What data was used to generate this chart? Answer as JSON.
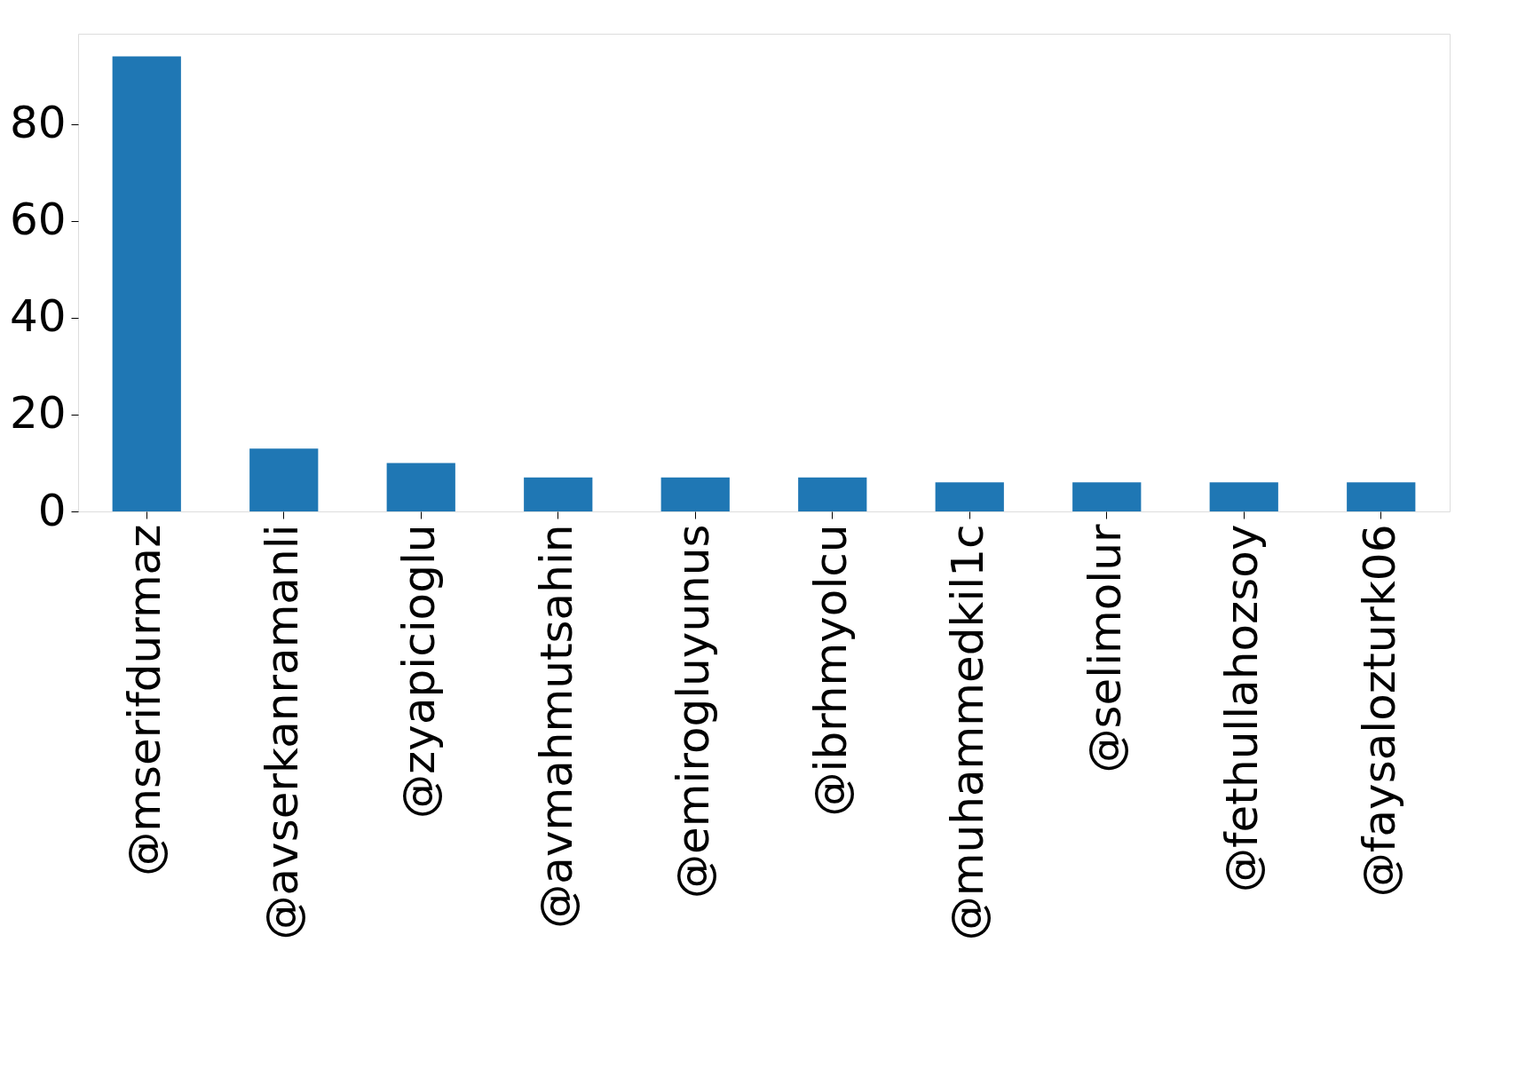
{
  "chart_data": {
    "type": "bar",
    "categories": [
      "@mserifdurmaz",
      "@avserkanramanli",
      "@zyapicioglu",
      "@avmahmutsahin",
      "@emirogluyunus",
      "@ibrhmyolcu",
      "@muhammedkil1c",
      "@selimolur",
      "@fethullahozsoy",
      "@faysalozturk06"
    ],
    "values": [
      94,
      13,
      10,
      7,
      7,
      7,
      6,
      6,
      6,
      6
    ],
    "color": "#1f77b4",
    "ylim": [
      0,
      98.7
    ],
    "yticks": [
      0,
      20,
      40,
      60,
      80
    ],
    "grid": false
  }
}
